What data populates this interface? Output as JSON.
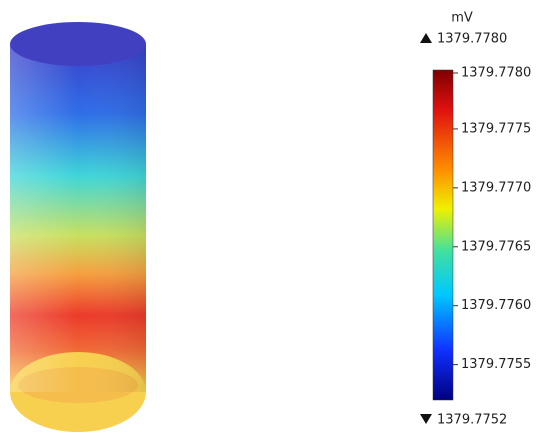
{
  "legend": {
    "unit": "mV",
    "max": {
      "value": 1379.778,
      "label": "1379.7780"
    },
    "min": 1379.7752,
    "ticks": [
      {
        "value": 1379.778,
        "label": "1379.7780"
      },
      1379.7775,
      {
        "value": 1379.777,
        "label": "1379.7770"
      },
      1379.7765,
      {
        "value": 1379.776,
        "label": "1379.7760"
      },
      1379.7755
    ]
  }
}
